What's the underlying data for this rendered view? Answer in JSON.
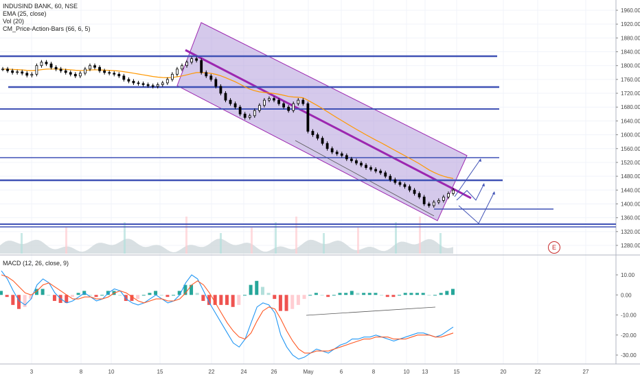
{
  "header": {
    "symbol_line": "INDUSIND BANK, 60, NSE",
    "ema_label": "EMA (25, close)",
    "vol_label": "Vol (20)",
    "indicator_label": "CM_Price-Action-Bars (66, 6, 5)"
  },
  "macd": {
    "label": "MACD (12, 26, close, 9)"
  },
  "earnings_badge": "E",
  "colors": {
    "channel_fill": "#b39ddb",
    "channel_stroke": "#9c27b0",
    "midline": "#9c27b0",
    "hline": "#3f51b5",
    "candle": "#000000",
    "ema": "#ff9800",
    "volume": "#cfd8dc",
    "macd_line": "#2196f3",
    "signal_line": "#ff5722",
    "hist_up_strong": "#26a69a",
    "hist_up_weak": "#b2dfdb",
    "hist_down_strong": "#ef5350",
    "hist_down_weak": "#ffcdd2"
  },
  "chart_data": [
    {
      "type": "candlestick",
      "title": "INDUSIND BANK, 60, NSE",
      "y_axis_ticks": [
        "1960.00",
        "1920.00",
        "1880.00",
        "1840.00",
        "1800.00",
        "1760.00",
        "1720.00",
        "1680.00",
        "1640.00",
        "1600.00",
        "1560.00",
        "1520.00",
        "1480.00",
        "1440.00",
        "1400.00",
        "1360.00",
        "1320.00",
        "1280.00"
      ],
      "ylim": [
        1260,
        1980
      ],
      "x_axis_ticks": [
        "3",
        "8",
        "10",
        "15",
        "22",
        "24",
        "26",
        "May",
        "6",
        "8",
        "10",
        "13",
        "15",
        "20",
        "22",
        "27"
      ],
      "close_series": [
        1790,
        1785,
        1780,
        1782,
        1778,
        1772,
        1775,
        1800,
        1810,
        1805,
        1795,
        1790,
        1785,
        1780,
        1775,
        1770,
        1778,
        1790,
        1800,
        1795,
        1785,
        1780,
        1778,
        1775,
        1770,
        1760,
        1755,
        1750,
        1748,
        1745,
        1742,
        1740,
        1745,
        1750,
        1760,
        1775,
        1790,
        1800,
        1810,
        1820,
        1815,
        1780,
        1770,
        1760,
        1740,
        1720,
        1700,
        1690,
        1680,
        1660,
        1650,
        1655,
        1670,
        1685,
        1700,
        1705,
        1700,
        1690,
        1680,
        1670,
        1690,
        1700,
        1690,
        1610,
        1600,
        1590,
        1575,
        1560,
        1550,
        1545,
        1540,
        1530,
        1525,
        1518,
        1512,
        1505,
        1500,
        1495,
        1490,
        1480,
        1470,
        1462,
        1456,
        1450,
        1440,
        1430,
        1420,
        1400,
        1395,
        1405,
        1410,
        1420,
        1430,
        1440
      ],
      "ema": {
        "name": "EMA (25, close)",
        "period": 25
      },
      "horizontal_levels": [
        1830,
        1735,
        1670,
        1532,
        1465,
        1385,
        1328,
        1324,
        1320
      ],
      "channel": {
        "upper_start": [
          18,
          1920
        ],
        "upper_end": [
          70,
          1534
        ],
        "lower_start": [
          14,
          1740
        ],
        "lower_end": [
          66,
          1358
        ],
        "midline_start": [
          16,
          1840
        ],
        "midline_end": [
          69,
          1390
        ]
      },
      "projected_path_levels": [
        1440,
        1400,
        1360,
        1440,
        1400,
        1360,
        1380
      ]
    },
    {
      "type": "bar",
      "title": "Vol (20)"
    },
    {
      "type": "line",
      "title": "MACD (12, 26, close, 9)",
      "y_axis_ticks": [
        "10.00",
        "0.00",
        "-10.00",
        "-20.00",
        "-30.00"
      ],
      "ylim": [
        -34,
        16
      ],
      "series": [
        {
          "name": "MACD",
          "values": [
            12,
            8,
            2,
            -3,
            -5,
            -2,
            5,
            8,
            6,
            1,
            -2,
            -4,
            -3,
            -1,
            1,
            -1,
            -3,
            -2,
            1,
            3,
            2,
            -2,
            -4,
            -5,
            -4,
            -2,
            0,
            -2,
            -4,
            -3,
            0,
            6,
            10,
            8,
            2,
            -4,
            -9,
            -14,
            -19,
            -24,
            -26,
            -22,
            -14,
            -6,
            -4,
            -5,
            -9,
            -20,
            -26,
            -30,
            -32,
            -31,
            -29,
            -27,
            -28,
            -29,
            -27,
            -25,
            -24,
            -22,
            -22,
            -21,
            -21,
            -20,
            -21,
            -22,
            -23,
            -22,
            -21,
            -20,
            -19,
            -19,
            -20,
            -21,
            -20,
            -18,
            -16
          ]
        },
        {
          "name": "Signal",
          "values": [
            10,
            9,
            7,
            4,
            1,
            0,
            2,
            5,
            6,
            4,
            2,
            0,
            -2,
            -2,
            -1,
            -1,
            -2,
            -2,
            -1,
            1,
            2,
            1,
            -1,
            -3,
            -4,
            -3,
            -2,
            -2,
            -3,
            -3,
            -2,
            1,
            5,
            7,
            5,
            1,
            -4,
            -9,
            -14,
            -18,
            -21,
            -22,
            -19,
            -13,
            -8,
            -6,
            -7,
            -12,
            -18,
            -23,
            -27,
            -29,
            -29,
            -28,
            -28,
            -28,
            -27,
            -26,
            -25,
            -24,
            -23,
            -22,
            -22,
            -21,
            -21,
            -21,
            -22,
            -22,
            -22,
            -21,
            -20,
            -20,
            -20,
            -21,
            -21,
            -20,
            -19
          ]
        }
      ]
    }
  ]
}
